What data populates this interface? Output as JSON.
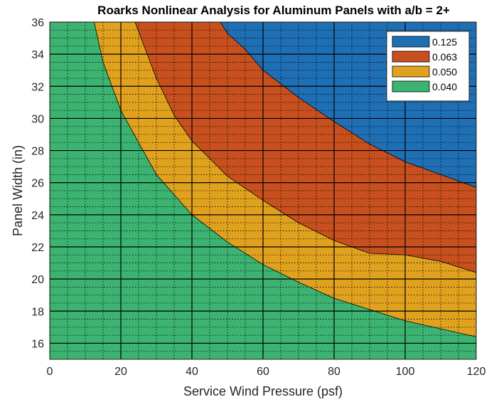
{
  "chart_data": {
    "type": "area",
    "title": "Roarks Nonlinear Analysis for Aluminum Panels with a/b = 2+",
    "xlabel": "Service Wind Pressure (psf)",
    "ylabel": "Panel Width (in)",
    "xlim": [
      0,
      120
    ],
    "ylim": [
      15,
      36
    ],
    "x_ticks": [
      "0",
      "20",
      "40",
      "60",
      "80",
      "100",
      "120"
    ],
    "y_ticks": [
      "16",
      "18",
      "20",
      "22",
      "24",
      "26",
      "28",
      "30",
      "32",
      "34",
      "36"
    ],
    "x_tick_values": [
      0,
      20,
      40,
      60,
      80,
      100,
      120
    ],
    "y_tick_values": [
      16,
      18,
      20,
      22,
      24,
      26,
      28,
      30,
      32,
      34,
      36
    ],
    "grid": true,
    "minor_grid": true,
    "legend_position": "top-right",
    "regions": [
      {
        "name": "0.040",
        "color": "#3CB371",
        "upper_boundary": {
          "x": [
            12.5,
            15,
            20,
            25,
            30,
            40,
            50,
            60,
            70,
            80,
            90,
            100,
            110,
            120
          ],
          "y": [
            36,
            33.5,
            30.5,
            28.5,
            26.5,
            24,
            22.3,
            20.9,
            19.8,
            18.8,
            18.1,
            17.4,
            16.9,
            16.4
          ]
        }
      },
      {
        "name": "0.050",
        "color": "#E0A21E",
        "upper_boundary": {
          "x": [
            24,
            25,
            30,
            35,
            40,
            50,
            60,
            70,
            80,
            90,
            100,
            110,
            120
          ],
          "y": [
            36,
            35.4,
            32.5,
            30.2,
            28.6,
            26.4,
            24.9,
            23.5,
            22.4,
            21.6,
            21.5,
            21.1,
            20.4
          ]
        }
      },
      {
        "name": "0.063",
        "color": "#C8501E",
        "upper_boundary": {
          "x": [
            48,
            50,
            55,
            60,
            70,
            80,
            90,
            100,
            110,
            120
          ],
          "y": [
            36,
            35.3,
            34.3,
            33.0,
            31.3,
            29.8,
            28.4,
            27.3,
            26.5,
            25.7
          ]
        }
      },
      {
        "name": "0.125",
        "color": "#1F6FB5"
      }
    ],
    "legend": [
      {
        "label": "0.125",
        "color": "#1F6FB5"
      },
      {
        "label": "0.063",
        "color": "#C8501E"
      },
      {
        "label": "0.050",
        "color": "#E0A21E"
      },
      {
        "label": "0.040",
        "color": "#3CB371"
      }
    ]
  }
}
